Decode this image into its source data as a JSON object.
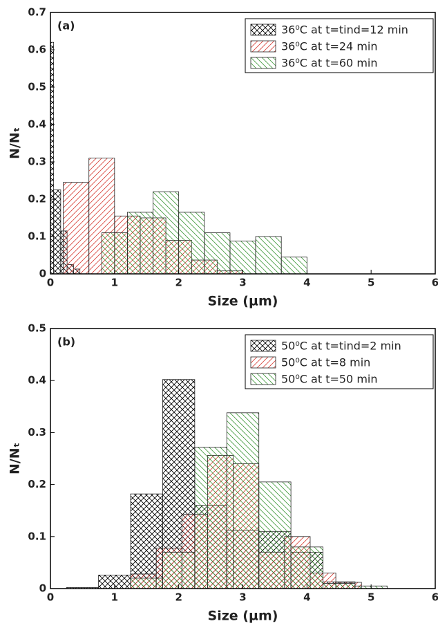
{
  "chart_data": [
    {
      "type": "histogram",
      "annotation": "(a)",
      "x_label": "Size (µm)",
      "y_label": "N/Nₜ",
      "xlim": [
        0,
        6
      ],
      "xticks": [
        0,
        1,
        2,
        3,
        4,
        5,
        6
      ],
      "ylim": [
        0,
        0.7
      ],
      "yticks": [
        0,
        0.1,
        0.2,
        0.3,
        0.4,
        0.5,
        0.6,
        0.7
      ],
      "legend": "upper right",
      "series": [
        {
          "name": "36⁰C at t=tind=12 min",
          "color": "#000000",
          "hatch": "x",
          "bins": [
            0,
            0.05,
            0.16,
            0.26,
            0.36,
            0.46
          ],
          "values": [
            0.62,
            0.225,
            0.115,
            0.025,
            0.013
          ]
        },
        {
          "name": "36⁰C at t=24 min",
          "color": "#d9473f",
          "hatch": "/",
          "bins": [
            0.2,
            0.6,
            1.0,
            1.4,
            1.8,
            2.2,
            2.6,
            3.0
          ],
          "values": [
            0.245,
            0.31,
            0.155,
            0.15,
            0.09,
            0.037,
            0.008
          ]
        },
        {
          "name": "36⁰C at t=60 min",
          "color": "#4a9e45",
          "hatch": "\\",
          "bins": [
            0.8,
            1.2,
            1.6,
            2.0,
            2.4,
            2.8,
            3.2,
            3.6,
            4.0
          ],
          "values": [
            0.11,
            0.165,
            0.22,
            0.165,
            0.11,
            0.088,
            0.1,
            0.045
          ]
        }
      ]
    },
    {
      "type": "histogram",
      "annotation": "(b)",
      "x_label": "Size (µm)",
      "y_label": "N/Nₜ",
      "xlim": [
        0,
        6
      ],
      "xticks": [
        0,
        1,
        2,
        3,
        4,
        5,
        6
      ],
      "ylim": [
        0,
        0.5
      ],
      "yticks": [
        0,
        0.1,
        0.2,
        0.3,
        0.4,
        0.5
      ],
      "legend": "upper right",
      "series": [
        {
          "name": "50⁰C at t=tind=2 min",
          "color": "#000000",
          "hatch": "x",
          "bins": [
            0.25,
            0.75,
            1.25,
            1.75,
            2.25,
            2.75,
            3.25,
            3.75,
            4.25,
            4.75
          ],
          "values": [
            0.002,
            0.026,
            0.182,
            0.402,
            0.16,
            0.112,
            0.11,
            0.07,
            0.013
          ]
        },
        {
          "name": "50⁰C at t=8 min",
          "color": "#d9473f",
          "hatch": "/",
          "bins": [
            1.25,
            1.65,
            2.05,
            2.45,
            2.85,
            3.25,
            3.65,
            4.05,
            4.45,
            4.85
          ],
          "values": [
            0.028,
            0.078,
            0.143,
            0.256,
            0.24,
            0.07,
            0.1,
            0.03,
            0.012
          ]
        },
        {
          "name": "50⁰C at t=50 min",
          "color": "#4a9e45",
          "hatch": "\\",
          "bins": [
            1.25,
            1.75,
            2.25,
            2.75,
            3.25,
            3.75,
            4.25,
            4.75,
            5.25
          ],
          "values": [
            0.02,
            0.07,
            0.272,
            0.338,
            0.205,
            0.08,
            0.01,
            0.005
          ]
        }
      ]
    }
  ]
}
